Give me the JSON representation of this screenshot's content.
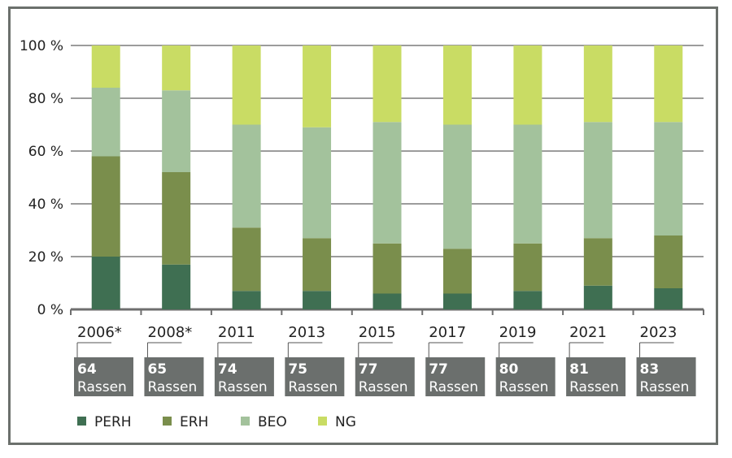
{
  "chart_data": {
    "type": "bar",
    "stacked": true,
    "categories": [
      "2006*",
      "2008*",
      "2011",
      "2013",
      "2015",
      "2017",
      "2019",
      "2021",
      "2023"
    ],
    "category_notes": [
      "64 Rassen",
      "65 Rassen",
      "74 Rassen",
      "75 Rassen",
      "77 Rassen",
      "77 Rassen",
      "80 Rassen",
      "81 Rassen",
      "83 Rassen"
    ],
    "y_ticks": [
      "0 %",
      "20 %",
      "40 %",
      "60 %",
      "80 %",
      "100 %"
    ],
    "ylim": [
      0,
      100
    ],
    "grid": true,
    "legend_position": "bottom",
    "series": [
      {
        "name": "PERH",
        "color": "#3f6f52",
        "values": [
          20,
          17,
          7,
          7,
          6,
          6,
          7,
          9,
          8
        ]
      },
      {
        "name": "ERH",
        "color": "#7a8e4c",
        "values": [
          38,
          35,
          24,
          20,
          19,
          17,
          18,
          18,
          20
        ]
      },
      {
        "name": "BEO",
        "color": "#a3c29c",
        "values": [
          26,
          31,
          39,
          42,
          46,
          47,
          45,
          44,
          43
        ]
      },
      {
        "name": "NG",
        "color": "#c9dc64",
        "values": [
          16,
          17,
          30,
          31,
          29,
          30,
          30,
          29,
          29
        ]
      }
    ]
  },
  "colors": {
    "grid": "#3a3a3a",
    "axis": "#6e6e6e",
    "note_box": "#6b6f6d",
    "note_text": "#ffffff",
    "frame": "#6b706c"
  }
}
